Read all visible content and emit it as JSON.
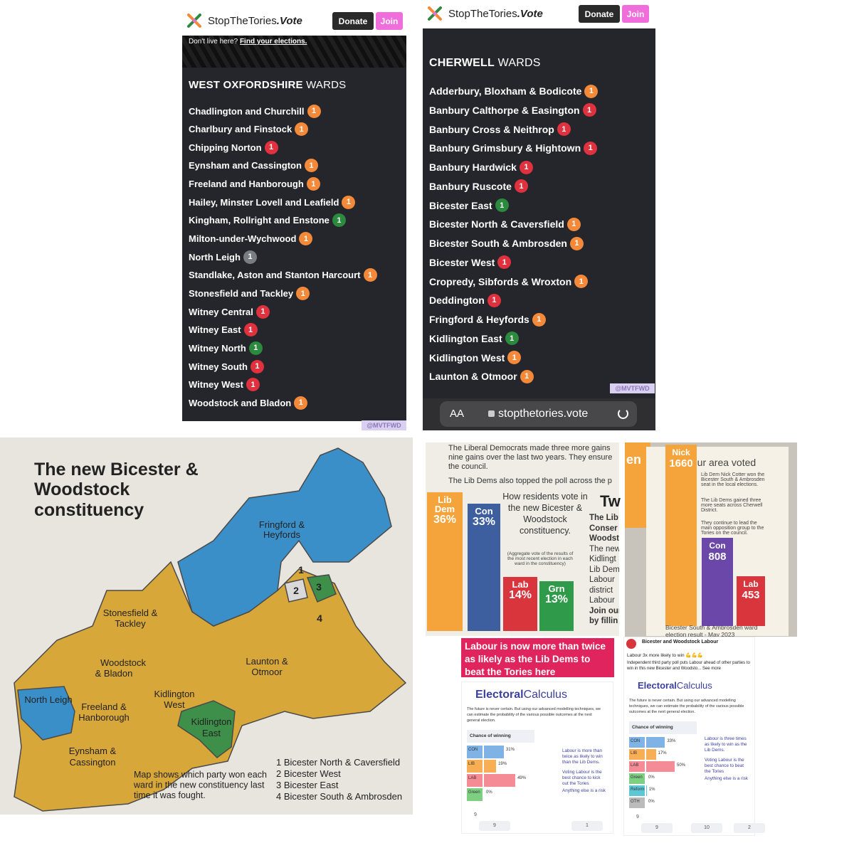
{
  "west_oxfordshire": {
    "brand": "StopTheTories",
    "brand_suffix": ".Vote",
    "donate": "Donate",
    "join": "Join",
    "banner_text": "Don't live here?",
    "banner_link": "Find your elections.",
    "heading_bold": "WEST OXFORDSHIRE",
    "heading_rest": "WARDS",
    "wards": [
      {
        "name": "Chadlington and Churchill",
        "count": 1,
        "color": "#f5893a"
      },
      {
        "name": "Charlbury and Finstock",
        "count": 1,
        "color": "#f5893a"
      },
      {
        "name": "Chipping Norton",
        "count": 1,
        "color": "#e0313f"
      },
      {
        "name": "Eynsham and Cassington",
        "count": 1,
        "color": "#f5893a"
      },
      {
        "name": "Freeland and Hanborough",
        "count": 1,
        "color": "#f5893a"
      },
      {
        "name": "Hailey, Minster Lovell and Leafield",
        "count": 1,
        "color": "#f5893a"
      },
      {
        "name": "Kingham, Rollright and Enstone",
        "count": 1,
        "color": "#2b8a3e"
      },
      {
        "name": "Milton-under-Wychwood",
        "count": 1,
        "color": "#f5893a"
      },
      {
        "name": "North Leigh",
        "count": 1,
        "color": "#7a7d82"
      },
      {
        "name": "Standlake, Aston and Stanton Harcourt",
        "count": 1,
        "color": "#f5893a"
      },
      {
        "name": "Stonesfield and Tackley",
        "count": 1,
        "color": "#f5893a"
      },
      {
        "name": "Witney Central",
        "count": 1,
        "color": "#e0313f"
      },
      {
        "name": "Witney East",
        "count": 1,
        "color": "#e0313f"
      },
      {
        "name": "Witney North",
        "count": 1,
        "color": "#2b8a3e"
      },
      {
        "name": "Witney South",
        "count": 1,
        "color": "#e0313f"
      },
      {
        "name": "Witney West",
        "count": 1,
        "color": "#e0313f"
      },
      {
        "name": "Woodstock and Bladon",
        "count": 1,
        "color": "#f5893a"
      }
    ],
    "watermark": "@MVTFWD"
  },
  "cherwell": {
    "brand": "StopTheTories",
    "brand_suffix": ".Vote",
    "donate": "Donate",
    "join": "Join",
    "heading_bold": "CHERWELL",
    "heading_rest": "WARDS",
    "wards": [
      {
        "name": "Adderbury, Bloxham & Bodicote",
        "count": 1,
        "color": "#f5893a"
      },
      {
        "name": "Banbury Calthorpe & Easington",
        "count": 1,
        "color": "#e0313f"
      },
      {
        "name": "Banbury Cross & Neithrop",
        "count": 1,
        "color": "#e0313f"
      },
      {
        "name": "Banbury Grimsbury & Hightown",
        "count": 1,
        "color": "#e0313f"
      },
      {
        "name": "Banbury Hardwick",
        "count": 1,
        "color": "#e0313f"
      },
      {
        "name": "Banbury Ruscote",
        "count": 1,
        "color": "#e0313f"
      },
      {
        "name": "Bicester East",
        "count": 1,
        "color": "#2b8a3e"
      },
      {
        "name": "Bicester North & Caversfield",
        "count": 1,
        "color": "#f5893a"
      },
      {
        "name": "Bicester South & Ambrosden",
        "count": 1,
        "color": "#f5893a"
      },
      {
        "name": "Bicester West",
        "count": 1,
        "color": "#e0313f"
      },
      {
        "name": "Cropredy, Sibfords & Wroxton",
        "count": 1,
        "color": "#f5893a"
      },
      {
        "name": "Deddington",
        "count": 1,
        "color": "#e0313f"
      },
      {
        "name": "Fringford & Heyfords",
        "count": 1,
        "color": "#f5893a"
      },
      {
        "name": "Kidlington East",
        "count": 1,
        "color": "#2b8a3e"
      },
      {
        "name": "Kidlington West",
        "count": 1,
        "color": "#f5893a"
      },
      {
        "name": "Launton & Otmoor",
        "count": 1,
        "color": "#f5893a"
      }
    ],
    "watermark": "@MVTFWD",
    "browser_aa": "AA",
    "url": "stopthetories.vote"
  },
  "map": {
    "title": [
      "The new Bicester &",
      "Woodstock",
      "constituency"
    ],
    "labels": [
      "Fringford &",
      "Heyfords",
      "Stonesfield &",
      "Tackley",
      "Woodstock",
      "& Bladon",
      "Launton &",
      "Otmoor",
      "Kidlington",
      "West",
      "North Leigh",
      "Freeland &",
      "Hanborough",
      "Kidlington",
      "East",
      "Eynsham &",
      "Cassington",
      "1",
      "2",
      "3",
      "4"
    ],
    "caption": [
      "Map shows which party won each",
      "ward in the new constituency last",
      "time it was fought."
    ],
    "legend": [
      "1 Bicester North & Caversfield",
      "2 Bicester West",
      "3 Bicester East",
      "4 Bicester South & Ambrosden"
    ]
  },
  "leaflet_vote": {
    "intro": [
      "The Liberal Democrats made three more gains",
      "nine gains over the last two years. They ensure",
      "the council.",
      "The Lib Dems also topped the poll across the p"
    ],
    "chart_title": "How residents vote in the new Bicester & Woodstock constituency.",
    "chart_note": "(Aggregate vote of the results of the most recent election in each ward in the constituency)",
    "bars": [
      {
        "party": "Lib Dem",
        "value": 36,
        "value_label": "36%",
        "color": "#f4a43b"
      },
      {
        "party": "Con",
        "value": 33,
        "value_label": "33%",
        "color": "#3d5f9f"
      },
      {
        "party": "Lab",
        "value": 14,
        "value_label": "14%",
        "color": "#d9353c"
      },
      {
        "party": "Grn",
        "value": 13,
        "value_label": "13%",
        "color": "#2f9a4a"
      }
    ],
    "side_heading": "Tw",
    "side_text": [
      "The Lib",
      "Conser",
      "Woodst",
      "The new",
      "Kidlingt",
      "Lib Dem",
      "Labour",
      "district",
      "Labour",
      "Join our",
      "by fillin"
    ]
  },
  "leaflet_result": {
    "corner": "en",
    "title": "How our area voted",
    "notes": [
      "Lib Dem Nick Cotter won the Bicester South & Ambrosden seat in the local elections.",
      "The Lib Dems gained three more seats across Cherwell District.",
      "They continue to lead the main opposition group to the Tories on the council."
    ],
    "bars": [
      {
        "name": "Nick",
        "value": 1660,
        "color": "#f4a43b"
      },
      {
        "name": "Con",
        "value": 808,
        "color": "#6a47a8"
      },
      {
        "name": "Lab",
        "value": 453,
        "color": "#d9353c"
      }
    ],
    "footer": "Bicester South & Ambrosden ward election result - May 2023"
  },
  "labour_post": {
    "headline": "Labour is now more than twice as likely as the Lib Dems to beat the Tories here",
    "logo_a": "Electoral",
    "logo_b": "Calculus",
    "intro": "The future is never certain. But using our advanced modelling techniques, we can estimate the probability of the various possible outcomes at the next general election.",
    "panel_title": "Chance of winning",
    "bars": [
      {
        "party": "CON",
        "value": 31,
        "value_label": "31%",
        "color": "#7fb3e6"
      },
      {
        "party": "LIB",
        "value": 19,
        "value_label": "19%",
        "color": "#f7ae55"
      },
      {
        "party": "LAB",
        "value": 49,
        "value_label": "49%",
        "color": "#f58b95"
      },
      {
        "party": "Green",
        "value": 0,
        "value_label": "0%",
        "color": "#7fcf83"
      }
    ],
    "notes": [
      "Labour is more than twice as likely to win than the Lib Dems.",
      "Voting Labour is the best chance to kick out the Tories",
      "Anything else is a risk"
    ],
    "reactions": 9,
    "likes": 9,
    "shares": 1
  },
  "facebook_post": {
    "page": "Bicester and Woodstock Labour",
    "text1": "Labour 3x more likely to win 💪💪💪",
    "text2": "Independent third party poll puts Labour ahead of other parties to win in this new Bicester and Woodsto... See more",
    "logo_a": "Electoral",
    "logo_b": "Calculus",
    "intro": "The future is never certain. But using our advanced modelling techniques, we can estimate the probability of the various possible outcomes at the next general election.",
    "panel_title": "Chance of winning",
    "bars": [
      {
        "party": "CON",
        "value": 33,
        "value_label": "33%",
        "color": "#7fb3e6"
      },
      {
        "party": "LIB",
        "value": 17,
        "value_label": "17%",
        "color": "#f7ae55"
      },
      {
        "party": "LAB",
        "value": 50,
        "value_label": "50%",
        "color": "#f58b95"
      },
      {
        "party": "Green",
        "value": 0,
        "value_label": "0%",
        "color": "#7fcf83"
      },
      {
        "party": "Reform",
        "value": 1,
        "value_label": "1%",
        "color": "#5ec7d6"
      },
      {
        "party": "OTH",
        "value": 0,
        "value_label": "0%",
        "color": "#bbbbbb"
      }
    ],
    "notes": [
      "Labour is three times as likely to win as the Lib Dems.",
      "Voting Labour is the best chance to beat the Tories",
      "Anything else is a risk"
    ],
    "reactions": 9,
    "likes": 9,
    "comments": 10,
    "shares": 2
  }
}
